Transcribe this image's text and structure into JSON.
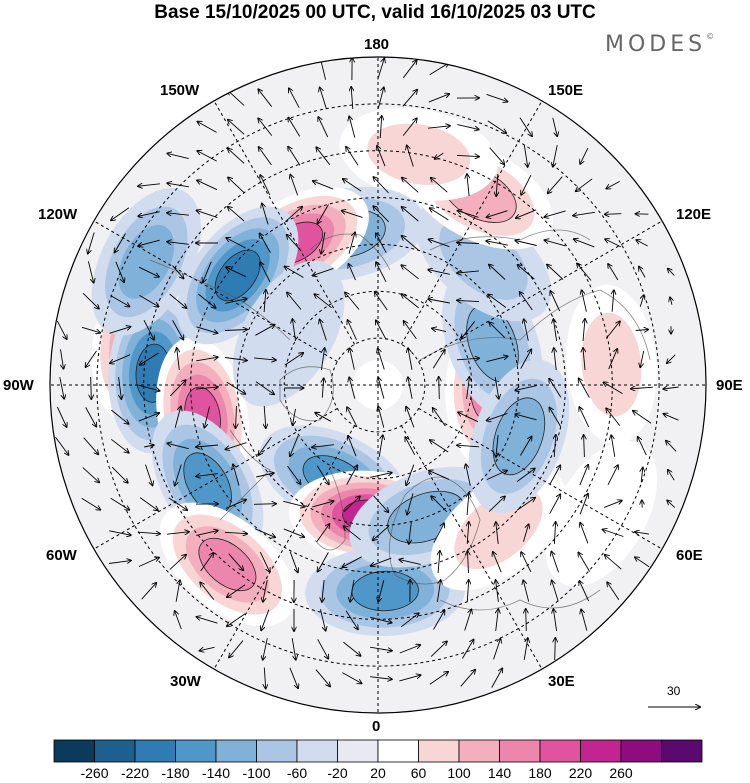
{
  "title": "Base 15/10/2025 00 UTC, valid 16/10/2025 03 UTC",
  "brand": "MODES",
  "brand_mark": "©",
  "longitude_labels": [
    {
      "id": "lon-180",
      "text": "180"
    },
    {
      "id": "lon-150e",
      "text": "150E"
    },
    {
      "id": "lon-120e",
      "text": "120E"
    },
    {
      "id": "lon-90e",
      "text": "90E"
    },
    {
      "id": "lon-60e",
      "text": "60E"
    },
    {
      "id": "lon-30e",
      "text": "30E"
    },
    {
      "id": "lon-0",
      "text": "0"
    },
    {
      "id": "lon-30w",
      "text": "30W"
    },
    {
      "id": "lon-60w",
      "text": "60W"
    },
    {
      "id": "lon-90w",
      "text": "90W"
    },
    {
      "id": "lon-120w",
      "text": "120W"
    },
    {
      "id": "lon-150w",
      "text": "150W"
    }
  ],
  "reference_vector": {
    "label": "30"
  },
  "colorbar": {
    "ticks": [
      "-260",
      "-220",
      "-180",
      "-140",
      "-100",
      "-60",
      "-20",
      "20",
      "60",
      "100",
      "140",
      "180",
      "220",
      "260"
    ],
    "colors": [
      "#0b3a5c",
      "#1d5f8f",
      "#2f7bb4",
      "#4f97c9",
      "#7fb1d9",
      "#aac6e4",
      "#d1dcef",
      "#e9e9f4",
      "#ffffff",
      "#f9d6d6",
      "#f3afbd",
      "#ec86ad",
      "#e0549f",
      "#c32590",
      "#8e0c80",
      "#5a0a6e"
    ]
  },
  "anomaly_centers": [
    {
      "lon": -100,
      "colat": 52,
      "value": 160
    },
    {
      "lon": -93,
      "colat": 48,
      "value": -200
    },
    {
      "lon": -80,
      "colat": 38,
      "value": 190
    },
    {
      "lon": -60,
      "colat": 42,
      "value": -170
    },
    {
      "lon": -40,
      "colat": 50,
      "value": 150
    },
    {
      "lon": -25,
      "colat": 22,
      "value": -140
    },
    {
      "lon": -4,
      "colat": 28,
      "value": 230
    },
    {
      "lon": 2,
      "colat": 44,
      "value": -160
    },
    {
      "lon": 20,
      "colat": 30,
      "value": -120
    },
    {
      "lon": 40,
      "colat": 40,
      "value": 60
    },
    {
      "lon": 88,
      "colat": 24,
      "value": 150
    },
    {
      "lon": 110,
      "colat": 26,
      "value": -120
    },
    {
      "lon": 140,
      "colat": 35,
      "value": -60
    },
    {
      "lon": 152,
      "colat": 46,
      "value": 130
    },
    {
      "lon": 170,
      "colat": 50,
      "value": 90
    },
    {
      "lon": -168,
      "colat": 33,
      "value": -130
    },
    {
      "lon": -150,
      "colat": 35,
      "value": 200
    },
    {
      "lon": -128,
      "colat": 38,
      "value": -200
    },
    {
      "lon": -118,
      "colat": 56,
      "value": -100
    },
    {
      "lon": 70,
      "colat": 32,
      "value": -130
    },
    {
      "lon": 60,
      "colat": 55,
      "value": 40
    },
    {
      "lon": 95,
      "colat": 50,
      "value": 60
    },
    {
      "lon": -120,
      "colat": 22,
      "value": -40
    }
  ]
}
